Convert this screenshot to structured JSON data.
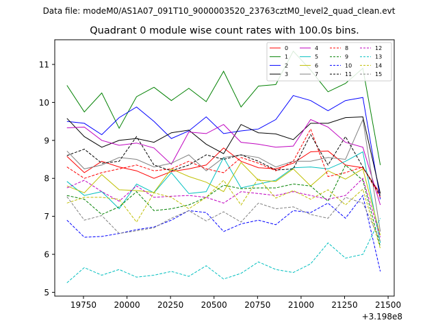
{
  "chart_data": {
    "type": "line",
    "suptitle": "Data file: modeM0/AS1A07_091T10_9000003520_23763cztM0_level2_quad_clean.evt",
    "title": "Quadrant 0 module wise count rates with 100.0s bins.",
    "xlabel": "",
    "ylabel": "",
    "x_offset_label": "+3.198e8",
    "x_offset": 319800000,
    "xlim": [
      19585,
      21535
    ],
    "ylim": [
      4.9,
      11.65
    ],
    "x_ticks": [
      19750,
      20000,
      20250,
      20500,
      20750,
      21000,
      21250,
      21500
    ],
    "x_tick_labels": [
      "19750",
      "20000",
      "20250",
      "20500",
      "20750",
      "21000",
      "21250",
      "21500"
    ],
    "y_ticks": [
      5,
      6,
      7,
      8,
      9,
      10,
      11
    ],
    "y_tick_labels": [
      "5",
      "6",
      "7",
      "8",
      "9",
      "10",
      "11"
    ],
    "grid": false,
    "legend_position": "upper-right",
    "x": [
      19655,
      19755,
      19855,
      19955,
      20055,
      20155,
      20255,
      20355,
      20455,
      20555,
      20655,
      20755,
      20855,
      20955,
      21055,
      21155,
      21255,
      21355,
      21455
    ],
    "series": [
      {
        "name": "0",
        "color": "#ff0000",
        "dash": "solid",
        "values": [
          8.58,
          8.15,
          8.45,
          8.3,
          8.2,
          8.0,
          8.18,
          8.25,
          8.35,
          8.8,
          8.45,
          8.28,
          8.25,
          8.4,
          8.7,
          8.72,
          8.35,
          8.28,
          7.6
        ]
      },
      {
        "name": "1",
        "color": "#008000",
        "dash": "solid",
        "values": [
          10.45,
          9.75,
          10.25,
          9.32,
          10.15,
          10.4,
          10.05,
          10.37,
          10.02,
          10.82,
          9.88,
          10.43,
          10.47,
          11.35,
          10.85,
          10.28,
          10.5,
          10.9,
          8.35
        ]
      },
      {
        "name": "2",
        "color": "#0000ff",
        "dash": "solid",
        "values": [
          9.5,
          9.45,
          9.15,
          9.6,
          9.88,
          9.5,
          9.05,
          9.25,
          9.62,
          9.18,
          9.25,
          9.3,
          9.55,
          10.18,
          10.05,
          9.78,
          10.05,
          10.13,
          7.45
        ]
      },
      {
        "name": "3",
        "color": "#000000",
        "dash": "solid",
        "values": [
          9.58,
          9.1,
          8.82,
          9.0,
          9.05,
          8.95,
          9.2,
          9.27,
          8.9,
          8.65,
          9.42,
          9.2,
          9.17,
          9.02,
          9.45,
          9.45,
          9.6,
          9.62,
          7.6
        ]
      },
      {
        "name": "4",
        "color": "#bf00bf",
        "dash": "solid",
        "values": [
          9.33,
          9.35,
          9.0,
          8.87,
          8.93,
          8.8,
          8.37,
          9.22,
          9.18,
          9.42,
          8.95,
          8.9,
          8.82,
          8.85,
          9.55,
          9.35,
          8.95,
          8.82,
          7.3
        ]
      },
      {
        "name": "5",
        "color": "#00bfbf",
        "dash": "solid",
        "values": [
          7.92,
          7.55,
          7.65,
          7.2,
          7.85,
          7.62,
          8.15,
          7.6,
          7.65,
          8.55,
          7.75,
          7.85,
          7.95,
          8.28,
          8.3,
          8.25,
          8.45,
          8.7,
          6.3
        ]
      },
      {
        "name": "6",
        "color": "#bfbf00",
        "dash": "solid",
        "values": [
          7.8,
          7.62,
          8.1,
          7.7,
          7.68,
          7.63,
          8.25,
          8.05,
          7.9,
          7.65,
          8.42,
          7.95,
          7.92,
          8.25,
          7.8,
          8.2,
          7.98,
          8.25,
          6.5
        ]
      },
      {
        "name": "7",
        "color": "#808080",
        "dash": "solid",
        "values": [
          8.72,
          8.25,
          8.35,
          8.55,
          8.5,
          8.3,
          8.4,
          8.62,
          8.2,
          8.55,
          8.62,
          8.55,
          8.3,
          8.45,
          8.45,
          8.55,
          8.5,
          9.55,
          6.6
        ]
      },
      {
        "name": "8",
        "color": "#ff0000",
        "dash": "dashed",
        "values": [
          8.3,
          8.0,
          8.15,
          8.25,
          8.35,
          8.2,
          8.25,
          8.45,
          8.25,
          8.15,
          8.55,
          8.4,
          8.2,
          8.45,
          9.3,
          8.05,
          8.15,
          8.3,
          7.5
        ]
      },
      {
        "name": "9",
        "color": "#008000",
        "dash": "dashed",
        "values": [
          7.55,
          7.45,
          7.05,
          7.25,
          7.65,
          7.15,
          7.2,
          7.3,
          7.5,
          7.82,
          7.73,
          7.75,
          7.75,
          7.85,
          7.8,
          7.4,
          8.35,
          7.95,
          6.2
        ]
      },
      {
        "name": "10",
        "color": "#0000ff",
        "dash": "dashed",
        "values": [
          6.9,
          6.45,
          6.47,
          6.55,
          6.65,
          6.72,
          6.9,
          7.15,
          7.1,
          6.6,
          6.8,
          6.9,
          6.78,
          7.15,
          7.1,
          7.35,
          6.95,
          7.55,
          5.55
        ]
      },
      {
        "name": "11",
        "color": "#000000",
        "dash": "dashed",
        "values": [
          8.6,
          8.77,
          8.4,
          8.45,
          9.1,
          8.35,
          8.2,
          8.35,
          8.62,
          8.5,
          8.62,
          8.45,
          8.22,
          8.25,
          9.15,
          8.35,
          9.1,
          8.3,
          7.55
        ]
      },
      {
        "name": "12",
        "color": "#bf00bf",
        "dash": "dashed",
        "values": [
          7.75,
          7.95,
          7.65,
          7.4,
          7.8,
          7.5,
          7.53,
          7.55,
          7.5,
          7.35,
          7.65,
          7.6,
          7.55,
          7.65,
          7.55,
          7.45,
          7.55,
          8.0,
          6.45
        ]
      },
      {
        "name": "13",
        "color": "#00bfbf",
        "dash": "dashed",
        "values": [
          5.25,
          5.65,
          5.45,
          5.6,
          5.4,
          5.45,
          5.55,
          5.42,
          5.7,
          5.35,
          5.5,
          5.8,
          5.6,
          5.52,
          5.75,
          6.3,
          5.9,
          6.0,
          6.95
        ]
      },
      {
        "name": "14",
        "color": "#bfbf00",
        "dash": "dashed",
        "values": [
          7.35,
          7.5,
          7.5,
          7.45,
          6.85,
          7.62,
          7.5,
          7.2,
          7.5,
          7.95,
          7.3,
          8.0,
          7.48,
          7.68,
          7.45,
          7.7,
          7.3,
          7.72,
          6.15
        ]
      },
      {
        "name": "15",
        "color": "#808080",
        "dash": "dashed",
        "values": [
          7.52,
          6.9,
          7.02,
          6.55,
          6.62,
          6.7,
          6.95,
          7.15,
          6.88,
          7.12,
          6.85,
          7.35,
          7.2,
          7.25,
          7.05,
          6.95,
          7.5,
          7.35,
          6.35
        ]
      }
    ]
  }
}
